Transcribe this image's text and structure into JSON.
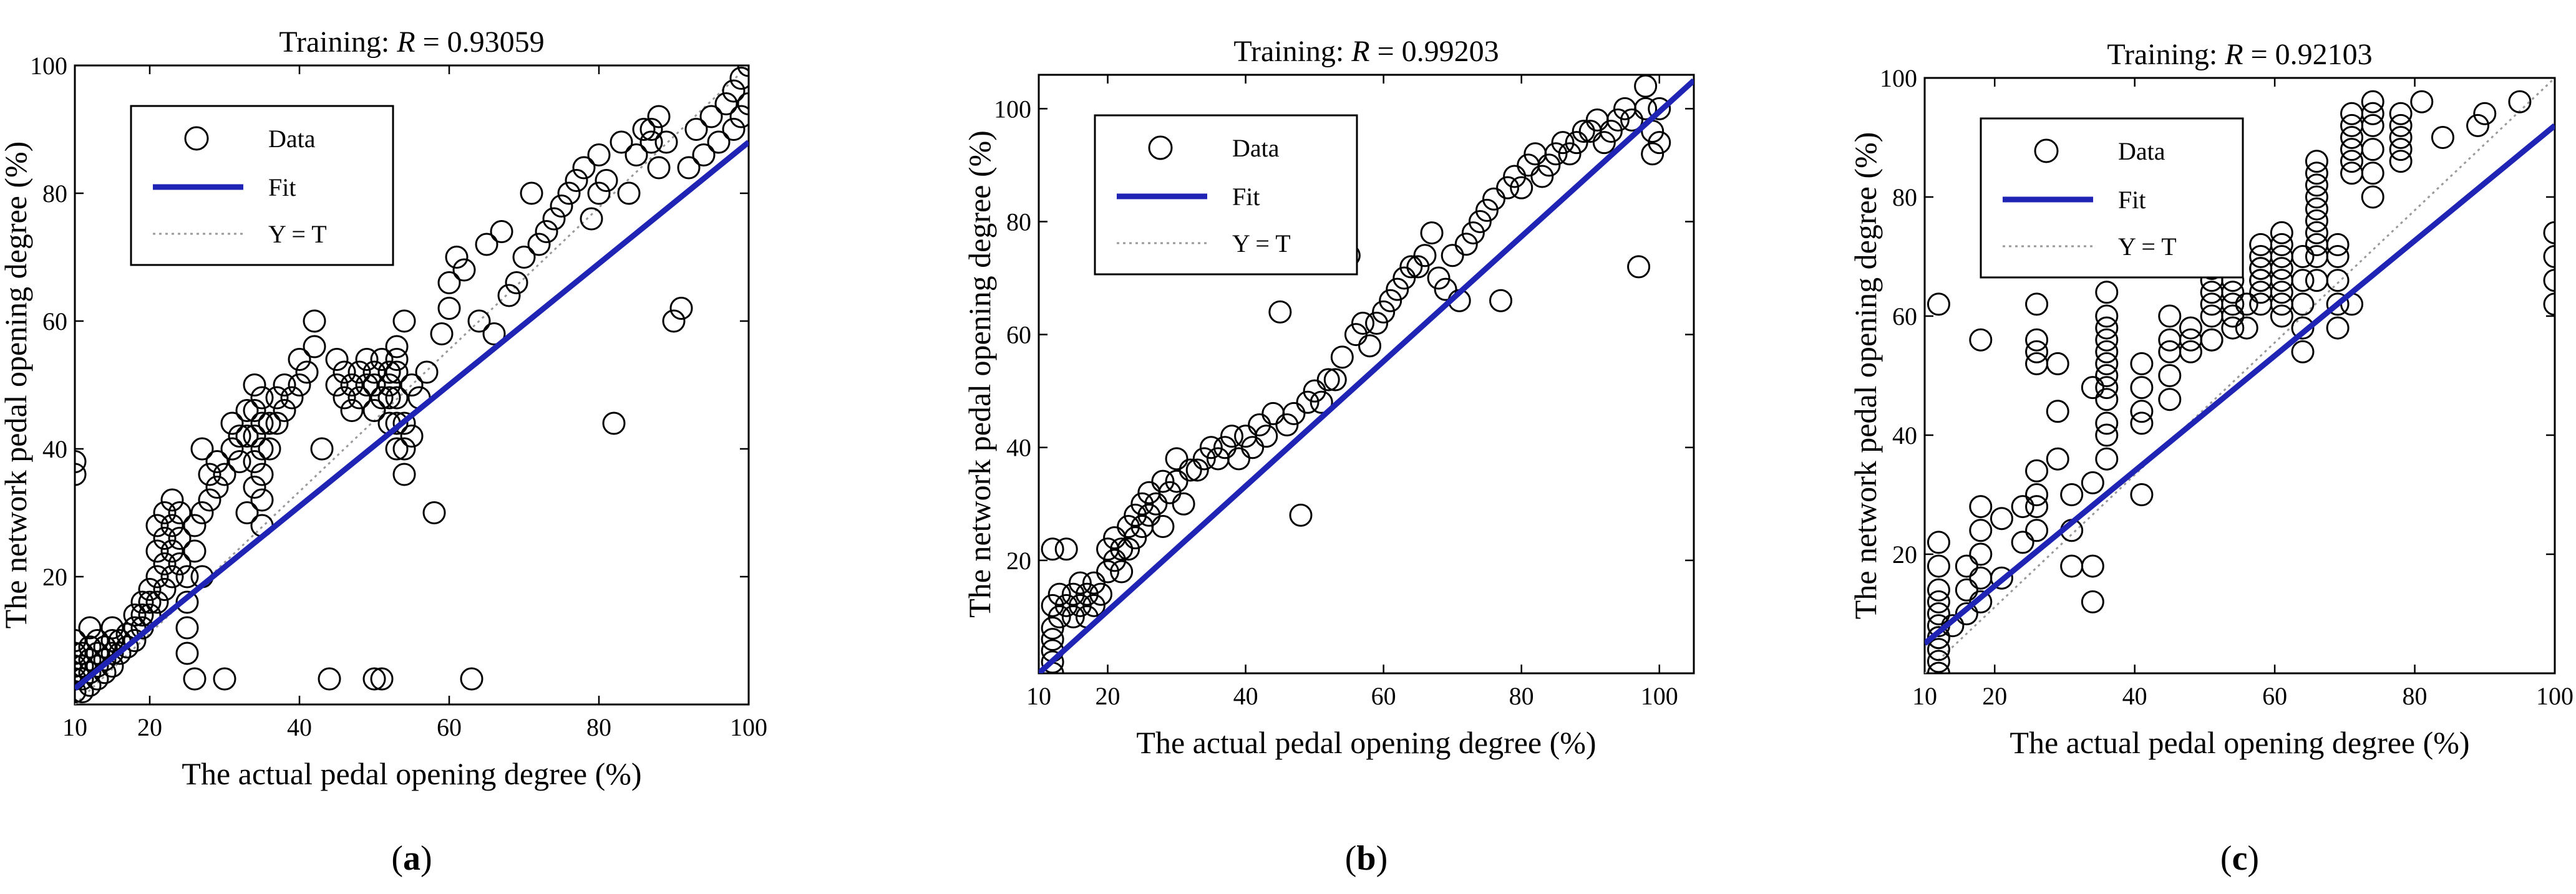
{
  "figure": {
    "panels": [
      "(a)",
      "(b)",
      "(c)"
    ]
  },
  "chart_data": [
    {
      "type": "scatter",
      "panel_label": "(a)",
      "title": "Training: R = 0.93059",
      "title_prefix": "Training: ",
      "title_var": "R",
      "title_value": " = 0.93059",
      "xlabel": "The actual pedal opening degree (%)",
      "ylabel": "The network pedal opening degree (%)",
      "xlim": [
        10,
        100
      ],
      "ylim": [
        0,
        100
      ],
      "xticks": [
        10,
        20,
        40,
        60,
        80,
        100
      ],
      "yticks": [
        20,
        40,
        60,
        80,
        100
      ],
      "legend": [
        "Data",
        "Fit",
        "Y = T"
      ],
      "legend_position": "top-left",
      "fit": {
        "x": [
          10,
          100
        ],
        "y": [
          2.5,
          88
        ]
      },
      "identity": {
        "x": [
          10,
          100
        ],
        "y": [
          0,
          100
        ]
      },
      "series": [
        {
          "name": "Data",
          "x": [
            10,
            10,
            10,
            10,
            10,
            10,
            10,
            11,
            11,
            11,
            11,
            12,
            12,
            12,
            12,
            12,
            13,
            13,
            13,
            13,
            14,
            14,
            14,
            15,
            15,
            15,
            15,
            16,
            16,
            17,
            17,
            18,
            18,
            18,
            19,
            19,
            19,
            20,
            20,
            20,
            21,
            21,
            21,
            21,
            22,
            22,
            22,
            22,
            23,
            23,
            23,
            23,
            24,
            24,
            24,
            25,
            25,
            25,
            25,
            26,
            26,
            26,
            27,
            27,
            27,
            28,
            28,
            29,
            29,
            30,
            30,
            31,
            31,
            32,
            32,
            33,
            33,
            33,
            34,
            34,
            34,
            34,
            34,
            35,
            35,
            35,
            35,
            35,
            35,
            36,
            36,
            37,
            37,
            38,
            38,
            39,
            40,
            40,
            41,
            42,
            42,
            43,
            44,
            45,
            45,
            46,
            46,
            47,
            47,
            48,
            48,
            49,
            49,
            50,
            50,
            50,
            50,
            51,
            51,
            51,
            52,
            52,
            52,
            52,
            52,
            53,
            53,
            53,
            53,
            53,
            53,
            54,
            54,
            54,
            54,
            55,
            55,
            56,
            57,
            58,
            59,
            60,
            60,
            61,
            62,
            63,
            64,
            65,
            66,
            67,
            68,
            69,
            70,
            71,
            72,
            73,
            74,
            75,
            76,
            77,
            78,
            79,
            80,
            80,
            81,
            82,
            83,
            84,
            85,
            86,
            87,
            87,
            88,
            88,
            89,
            90,
            91,
            92,
            93,
            94,
            95,
            96,
            97,
            98,
            98,
            99,
            99,
            100,
            100
          ],
          "y": [
            2,
            4,
            6,
            8,
            10,
            36,
            38,
            2,
            4,
            6,
            8,
            3,
            5,
            7,
            9,
            12,
            4,
            6,
            8,
            10,
            5,
            7,
            9,
            6,
            8,
            10,
            12,
            8,
            10,
            9,
            11,
            10,
            12,
            14,
            12,
            14,
            16,
            14,
            16,
            18,
            16,
            20,
            24,
            28,
            18,
            22,
            26,
            30,
            20,
            24,
            28,
            32,
            22,
            26,
            30,
            8,
            12,
            16,
            20,
            4,
            24,
            28,
            20,
            30,
            40,
            32,
            36,
            34,
            38,
            4,
            36,
            40,
            44,
            38,
            42,
            42,
            46,
            30,
            34,
            38,
            42,
            46,
            50,
            28,
            32,
            36,
            40,
            44,
            48,
            40,
            44,
            44,
            48,
            46,
            50,
            48,
            50,
            54,
            52,
            56,
            60,
            40,
            4,
            50,
            54,
            48,
            52,
            46,
            50,
            48,
            52,
            50,
            54,
            4,
            46,
            50,
            52,
            54,
            4,
            48,
            52,
            44,
            48,
            50,
            52,
            54,
            40,
            44,
            48,
            52,
            56,
            60,
            36,
            40,
            44,
            50,
            42,
            48,
            52,
            30,
            58,
            62,
            66,
            70,
            68,
            4,
            60,
            72,
            58,
            74,
            64,
            66,
            70,
            80,
            72,
            74,
            76,
            78,
            80,
            82,
            84,
            76,
            80,
            86,
            82,
            44,
            88,
            80,
            86,
            90,
            88,
            90,
            84,
            92,
            88,
            60,
            62,
            84,
            90,
            86,
            92,
            88,
            94,
            90,
            96,
            92,
            98,
            94,
            100
          ]
        }
      ]
    },
    {
      "type": "scatter",
      "panel_label": "(b)",
      "title": "Training: R = 0.99203",
      "title_prefix": "Training: ",
      "title_var": "R",
      "title_value": " = 0.99203",
      "xlabel": "The actual pedal opening degree (%)",
      "ylabel": "The network pedal opening degree (%)",
      "xlim": [
        10,
        105
      ],
      "ylim": [
        0,
        106
      ],
      "xticks": [
        10,
        20,
        40,
        60,
        80,
        100
      ],
      "yticks": [
        20,
        40,
        60,
        80,
        100
      ],
      "legend": [
        "Data",
        "Fit",
        "Y = T"
      ],
      "legend_position": "top-left",
      "fit": {
        "x": [
          10,
          105
        ],
        "y": [
          0,
          105
        ]
      },
      "identity": {
        "x": [
          10,
          105
        ],
        "y": [
          0,
          105
        ]
      },
      "series": [
        {
          "name": "Data",
          "x": [
            12,
            12,
            12,
            12,
            12,
            12,
            12,
            13,
            13,
            14,
            14,
            15,
            15,
            16,
            16,
            17,
            17,
            18,
            18,
            19,
            20,
            20,
            21,
            21,
            22,
            22,
            23,
            23,
            24,
            24,
            25,
            25,
            26,
            26,
            27,
            28,
            28,
            29,
            30,
            30,
            31,
            32,
            33,
            34,
            35,
            36,
            37,
            38,
            39,
            40,
            41,
            42,
            43,
            44,
            45,
            46,
            47,
            48,
            49,
            50,
            51,
            52,
            53,
            54,
            55,
            56,
            57,
            58,
            59,
            60,
            61,
            62,
            63,
            64,
            65,
            66,
            67,
            68,
            69,
            70,
            71,
            72,
            73,
            74,
            75,
            76,
            77,
            78,
            79,
            80,
            81,
            82,
            83,
            84,
            85,
            86,
            87,
            88,
            89,
            90,
            91,
            92,
            93,
            94,
            95,
            96,
            97,
            98,
            98,
            99,
            99,
            100,
            100,
            100
          ],
          "y": [
            0,
            2,
            4,
            6,
            8,
            12,
            22,
            10,
            14,
            12,
            22,
            10,
            14,
            12,
            16,
            10,
            14,
            12,
            16,
            14,
            18,
            22,
            20,
            24,
            18,
            22,
            22,
            26,
            24,
            28,
            26,
            30,
            28,
            32,
            30,
            34,
            26,
            32,
            34,
            38,
            30,
            36,
            36,
            38,
            40,
            38,
            40,
            42,
            38,
            42,
            40,
            44,
            42,
            46,
            64,
            44,
            46,
            28,
            48,
            50,
            48,
            52,
            52,
            56,
            74,
            60,
            62,
            58,
            62,
            64,
            66,
            68,
            70,
            72,
            72,
            74,
            78,
            70,
            68,
            74,
            66,
            76,
            78,
            80,
            82,
            84,
            66,
            86,
            88,
            86,
            90,
            92,
            88,
            90,
            92,
            94,
            92,
            94,
            96,
            96,
            98,
            94,
            96,
            98,
            100,
            98,
            72,
            104,
            100,
            92,
            96,
            100,
            108,
            94
          ]
        }
      ]
    },
    {
      "type": "scatter",
      "panel_label": "(c)",
      "title": "Training: R = 0.92103",
      "title_prefix": "Training: ",
      "title_var": "R",
      "title_value": " = 0.92103",
      "xlabel": "The actual pedal opening degree (%)",
      "ylabel": "The network pedal opening degree (%)",
      "xlim": [
        10,
        100
      ],
      "ylim": [
        0,
        100
      ],
      "xticks": [
        10,
        20,
        40,
        60,
        80,
        100
      ],
      "yticks": [
        20,
        40,
        60,
        80,
        100
      ],
      "legend": [
        "Data",
        "Fit",
        "Y = T"
      ],
      "legend_position": "top-left",
      "fit": {
        "x": [
          10,
          100
        ],
        "y": [
          5,
          92
        ]
      },
      "identity": {
        "x": [
          10,
          100
        ],
        "y": [
          0,
          100
        ]
      },
      "series": [
        {
          "name": "Data",
          "x": [
            12,
            12,
            12,
            12,
            12,
            12,
            12,
            12,
            12,
            12,
            12,
            12,
            14,
            16,
            16,
            16,
            18,
            18,
            18,
            18,
            18,
            18,
            21,
            21,
            24,
            24,
            26,
            26,
            26,
            26,
            26,
            26,
            26,
            26,
            29,
            29,
            29,
            31,
            31,
            31,
            34,
            34,
            34,
            34,
            36,
            36,
            36,
            36,
            36,
            36,
            36,
            36,
            36,
            36,
            36,
            36,
            41,
            41,
            41,
            41,
            41,
            45,
            45,
            45,
            45,
            45,
            48,
            48,
            48,
            51,
            51,
            51,
            51,
            51,
            51,
            51,
            51,
            51,
            54,
            54,
            54,
            54,
            54,
            56,
            56,
            58,
            58,
            58,
            58,
            58,
            58,
            58,
            58,
            61,
            61,
            61,
            61,
            61,
            61,
            61,
            61,
            64,
            64,
            64,
            64,
            64,
            66,
            66,
            66,
            66,
            66,
            66,
            66,
            66,
            66,
            66,
            69,
            69,
            69,
            69,
            69,
            71,
            71,
            71,
            71,
            71,
            71,
            71,
            74,
            74,
            74,
            74,
            74,
            74,
            78,
            78,
            78,
            78,
            78,
            81,
            84,
            89,
            90,
            95,
            100,
            100,
            100,
            100
          ],
          "y": [
            0,
            2,
            4,
            6,
            8,
            10,
            12,
            14,
            18,
            22,
            62,
            6,
            8,
            10,
            14,
            18,
            12,
            16,
            20,
            24,
            28,
            56,
            16,
            26,
            22,
            28,
            24,
            28,
            30,
            34,
            52,
            54,
            56,
            62,
            36,
            44,
            52,
            18,
            24,
            30,
            12,
            18,
            32,
            48,
            36,
            40,
            42,
            46,
            48,
            50,
            52,
            54,
            56,
            58,
            60,
            64,
            30,
            42,
            44,
            48,
            52,
            46,
            50,
            54,
            56,
            60,
            54,
            56,
            58,
            56,
            60,
            62,
            64,
            66,
            68,
            70,
            72,
            56,
            58,
            60,
            62,
            64,
            66,
            58,
            62,
            64,
            66,
            68,
            70,
            62,
            66,
            68,
            72,
            60,
            62,
            64,
            66,
            68,
            70,
            72,
            74,
            54,
            58,
            62,
            66,
            70,
            66,
            70,
            72,
            74,
            76,
            78,
            80,
            82,
            84,
            86,
            58,
            62,
            66,
            70,
            72,
            86,
            88,
            90,
            92,
            94,
            84,
            62,
            80,
            84,
            88,
            92,
            94,
            96,
            86,
            88,
            90,
            92,
            94,
            96,
            90,
            92,
            94,
            96,
            62,
            66,
            70,
            74
          ]
        }
      ]
    }
  ]
}
